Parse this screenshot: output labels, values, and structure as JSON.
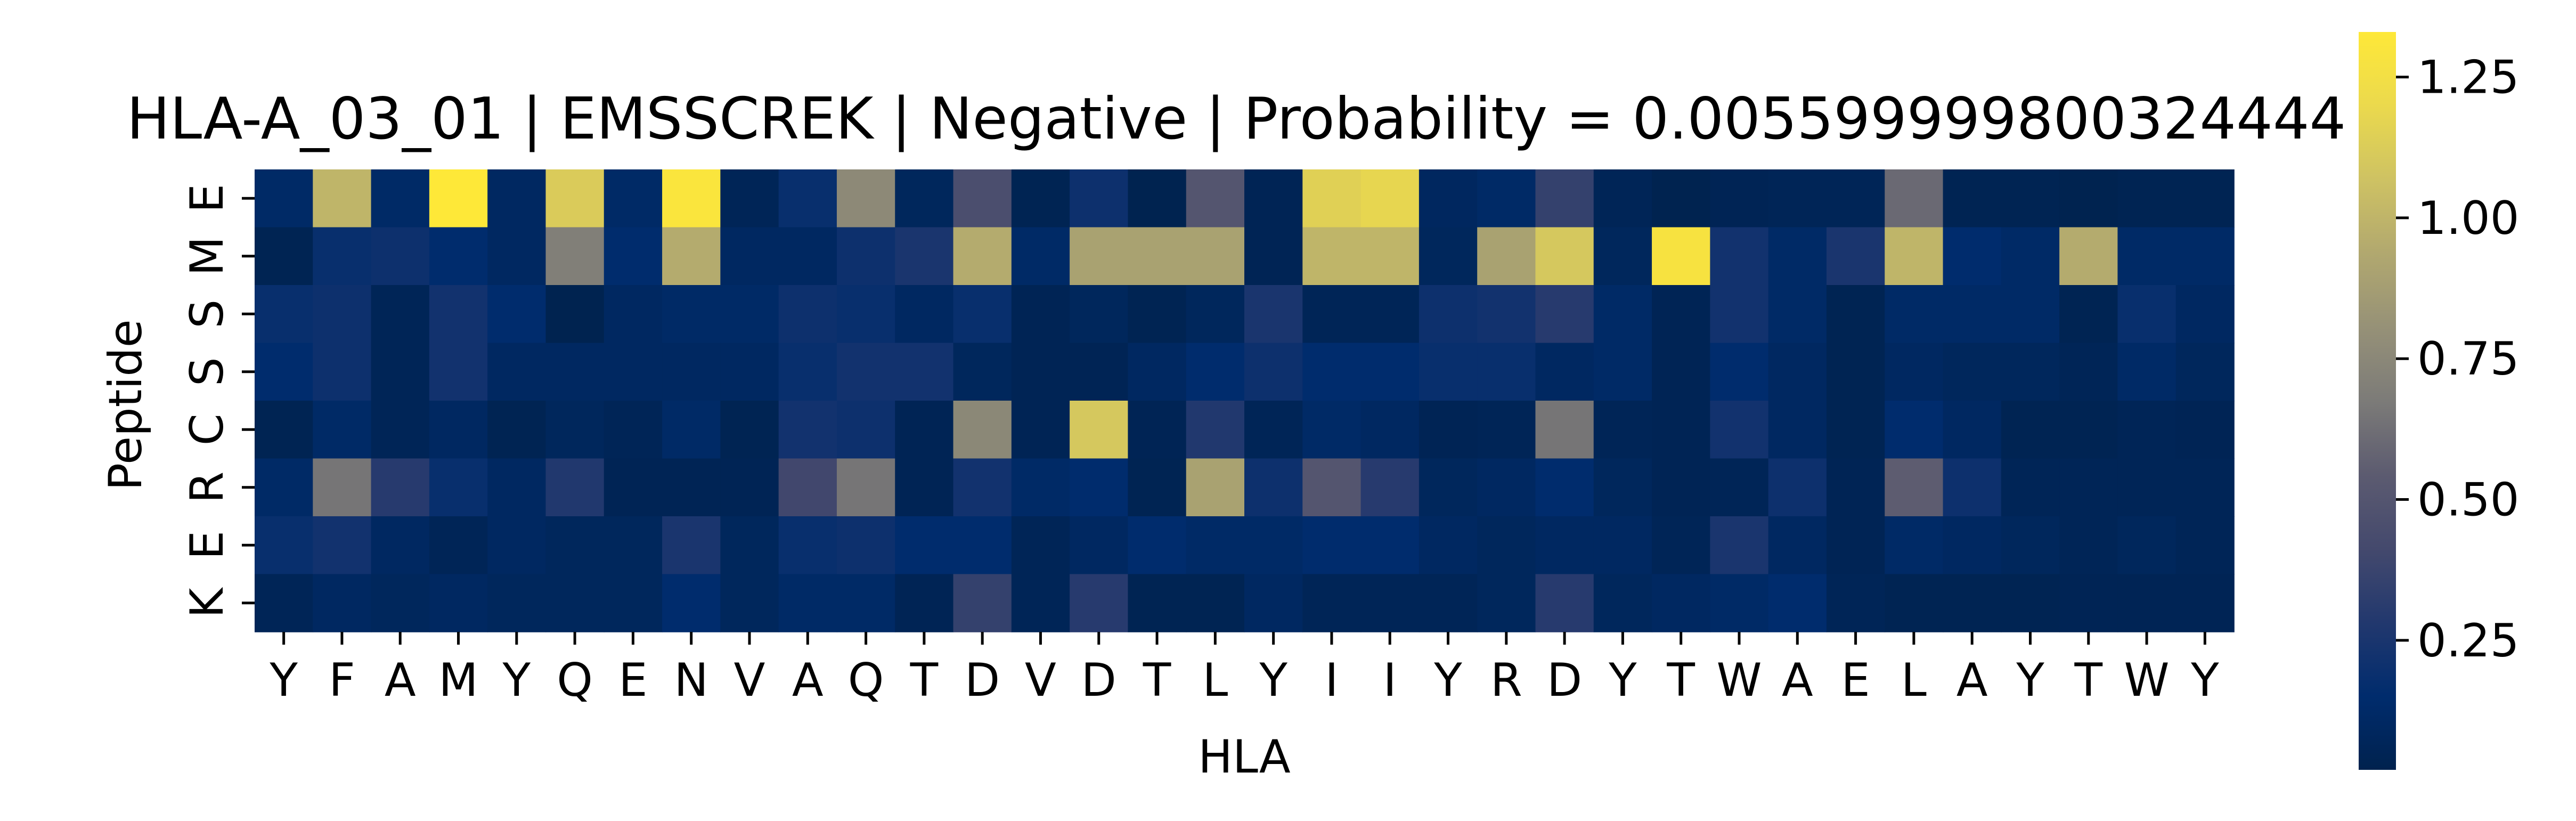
{
  "chart_data": {
    "type": "heatmap",
    "title": "HLA-A_03_01 | EMSSCREK | Negative | Probability = 0.005599999800324444",
    "xlabel": "HLA",
    "ylabel": "Peptide",
    "x_categories": [
      "Y",
      "F",
      "A",
      "M",
      "Y",
      "Q",
      "E",
      "N",
      "V",
      "A",
      "Q",
      "T",
      "D",
      "V",
      "D",
      "T",
      "L",
      "Y",
      "I",
      "I",
      "Y",
      "R",
      "D",
      "Y",
      "T",
      "W",
      "A",
      "E",
      "L",
      "A",
      "Y",
      "T",
      "W",
      "Y"
    ],
    "y_categories": [
      "E",
      "M",
      "S",
      "S",
      "C",
      "R",
      "E",
      "K"
    ],
    "colormap": "cividis",
    "vmin": 0.02,
    "vmax": 1.33,
    "colorbar_ticks": [
      "0.25",
      "0.50",
      "0.75",
      "1.00",
      "1.25"
    ],
    "colorbar_tick_values": [
      0.25,
      0.5,
      0.75,
      1.0,
      1.25
    ],
    "values": [
      [
        0.12,
        1.0,
        0.12,
        1.33,
        0.1,
        1.12,
        0.12,
        1.3,
        0.06,
        0.18,
        0.76,
        0.08,
        0.45,
        0.04,
        0.2,
        0.03,
        0.5,
        0.05,
        1.15,
        1.18,
        0.09,
        0.12,
        0.35,
        0.06,
        0.03,
        0.05,
        0.06,
        0.06,
        0.6,
        0.04,
        0.04,
        0.03,
        0.04,
        0.04
      ],
      [
        0.04,
        0.18,
        0.2,
        0.15,
        0.1,
        0.7,
        0.15,
        0.95,
        0.1,
        0.1,
        0.2,
        0.25,
        0.95,
        0.12,
        0.9,
        0.9,
        0.9,
        0.05,
        1.0,
        1.0,
        0.08,
        0.9,
        1.1,
        0.08,
        1.28,
        0.22,
        0.12,
        0.25,
        1.0,
        0.15,
        0.12,
        0.95,
        0.12,
        0.12
      ],
      [
        0.18,
        0.2,
        0.06,
        0.22,
        0.15,
        0.03,
        0.1,
        0.12,
        0.12,
        0.2,
        0.18,
        0.1,
        0.18,
        0.05,
        0.08,
        0.04,
        0.08,
        0.25,
        0.06,
        0.06,
        0.2,
        0.22,
        0.3,
        0.12,
        0.05,
        0.22,
        0.12,
        0.04,
        0.12,
        0.12,
        0.12,
        0.04,
        0.18,
        0.1
      ],
      [
        0.15,
        0.2,
        0.06,
        0.22,
        0.1,
        0.1,
        0.1,
        0.1,
        0.1,
        0.18,
        0.22,
        0.22,
        0.08,
        0.05,
        0.05,
        0.1,
        0.15,
        0.2,
        0.15,
        0.15,
        0.18,
        0.18,
        0.1,
        0.12,
        0.05,
        0.15,
        0.1,
        0.04,
        0.1,
        0.08,
        0.08,
        0.06,
        0.12,
        0.08
      ],
      [
        0.04,
        0.12,
        0.06,
        0.1,
        0.04,
        0.08,
        0.06,
        0.12,
        0.04,
        0.22,
        0.2,
        0.05,
        0.75,
        0.05,
        1.1,
        0.05,
        0.28,
        0.06,
        0.12,
        0.1,
        0.05,
        0.06,
        0.65,
        0.06,
        0.05,
        0.22,
        0.1,
        0.04,
        0.15,
        0.1,
        0.04,
        0.04,
        0.06,
        0.05
      ],
      [
        0.12,
        0.65,
        0.3,
        0.18,
        0.1,
        0.28,
        0.05,
        0.05,
        0.05,
        0.4,
        0.65,
        0.05,
        0.22,
        0.12,
        0.15,
        0.04,
        0.9,
        0.2,
        0.5,
        0.3,
        0.08,
        0.1,
        0.15,
        0.08,
        0.05,
        0.06,
        0.2,
        0.05,
        0.55,
        0.2,
        0.06,
        0.06,
        0.06,
        0.06
      ],
      [
        0.18,
        0.22,
        0.1,
        0.06,
        0.1,
        0.08,
        0.08,
        0.25,
        0.08,
        0.18,
        0.2,
        0.15,
        0.15,
        0.06,
        0.1,
        0.15,
        0.12,
        0.12,
        0.15,
        0.15,
        0.1,
        0.08,
        0.1,
        0.1,
        0.06,
        0.25,
        0.1,
        0.05,
        0.12,
        0.1,
        0.08,
        0.06,
        0.08,
        0.06
      ],
      [
        0.06,
        0.1,
        0.08,
        0.1,
        0.08,
        0.08,
        0.08,
        0.15,
        0.08,
        0.12,
        0.12,
        0.05,
        0.35,
        0.06,
        0.3,
        0.04,
        0.04,
        0.1,
        0.06,
        0.06,
        0.06,
        0.08,
        0.3,
        0.08,
        0.1,
        0.12,
        0.15,
        0.06,
        0.04,
        0.04,
        0.04,
        0.05,
        0.05,
        0.05
      ]
    ]
  }
}
